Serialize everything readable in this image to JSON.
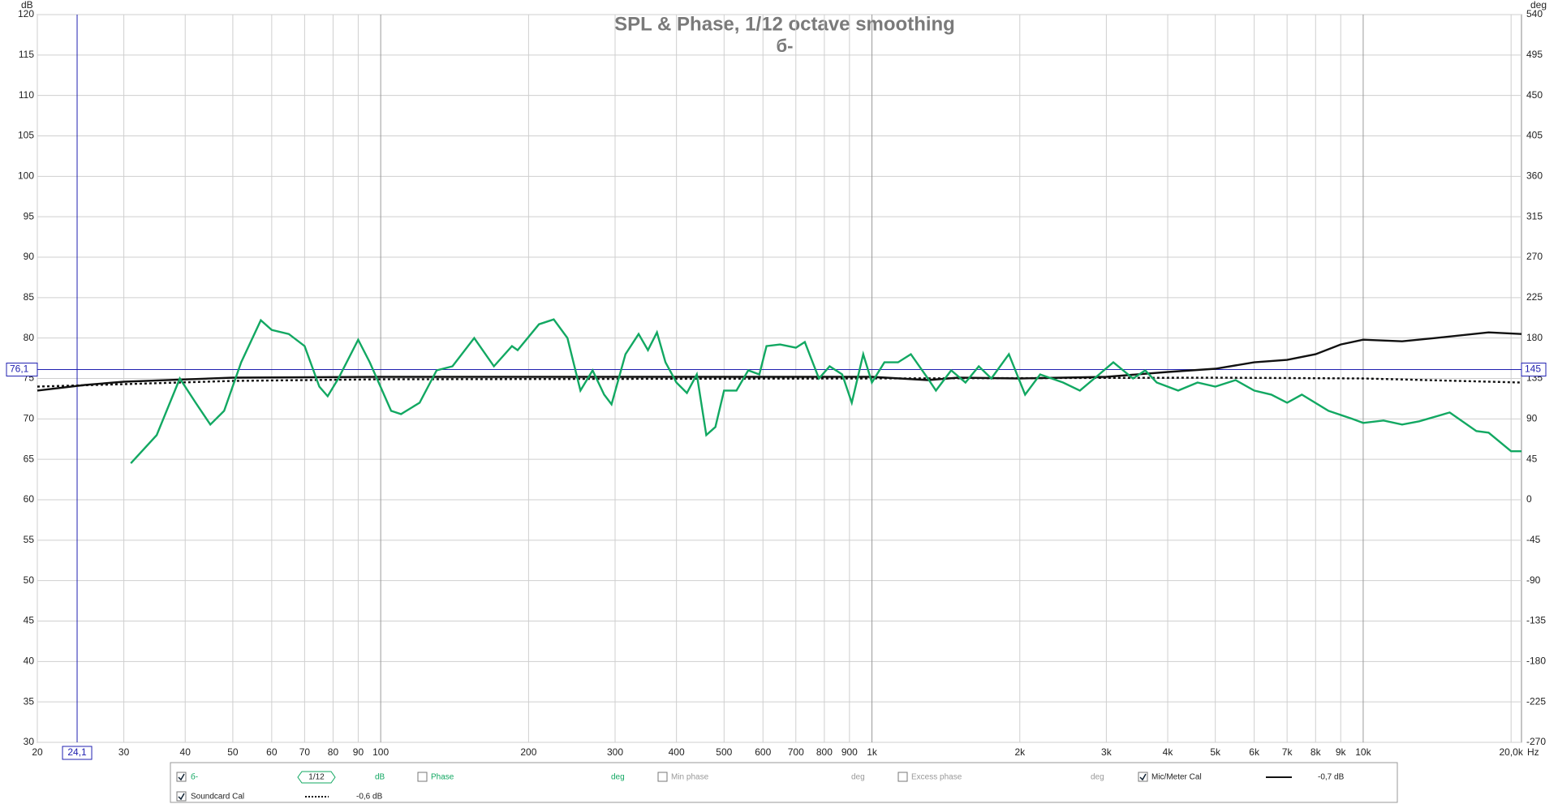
{
  "chart_data": {
    "type": "line",
    "title": "SPL & Phase, 1/12 octave smoothing",
    "subtitle": "б-",
    "y_label": "dB",
    "y2_label": "deg",
    "x_label": "Hz",
    "log_x": true,
    "grid": true,
    "xlim": [
      20,
      21000
    ],
    "xticks": [
      20,
      30,
      40,
      50,
      60,
      70,
      80,
      90,
      100,
      200,
      300,
      400,
      500,
      600,
      700,
      800,
      900,
      {
        "value": 1000,
        "label": "1k"
      },
      {
        "value": 2000,
        "label": "2k"
      },
      {
        "value": 3000,
        "label": "3k"
      },
      {
        "value": 4000,
        "label": "4k"
      },
      {
        "value": 5000,
        "label": "5k"
      },
      {
        "value": 6000,
        "label": "6k"
      },
      {
        "value": 7000,
        "label": "7k"
      },
      {
        "value": 8000,
        "label": "8k"
      },
      {
        "value": 9000,
        "label": "9k"
      },
      {
        "value": 10000,
        "label": "10k"
      },
      {
        "value": 20000,
        "label": "20,0k"
      }
    ],
    "ylim": [
      30,
      120
    ],
    "yticks": [
      30,
      35,
      40,
      45,
      50,
      55,
      60,
      65,
      70,
      75,
      80,
      85,
      90,
      95,
      100,
      105,
      110,
      115,
      120
    ],
    "y2lim": [
      -270,
      540
    ],
    "y2ticks": [
      -270,
      -225,
      -180,
      -135,
      -90,
      -45,
      0,
      45,
      90,
      135,
      180,
      225,
      270,
      315,
      360,
      405,
      450,
      495,
      540
    ],
    "cursor": {
      "x": {
        "value": 24.1,
        "label": "24,1"
      },
      "y": {
        "value": 76.1,
        "label": "76,1"
      },
      "y2": 145
    },
    "series": [
      {
        "name": "б-",
        "color": "#12a862",
        "checked": true,
        "smoothing": "1/12",
        "unit": "dB",
        "dash": false,
        "x": [
          31,
          35,
          39,
          42,
          45,
          48,
          52,
          57,
          60,
          65,
          70,
          75,
          78,
          82,
          90,
          95,
          105,
          110,
          120,
          130,
          140,
          155,
          170,
          185,
          190,
          210,
          225,
          240,
          255,
          270,
          285,
          295,
          315,
          335,
          350,
          365,
          380,
          400,
          420,
          440,
          460,
          480,
          500,
          530,
          560,
          590,
          610,
          650,
          700,
          730,
          780,
          820,
          870,
          910,
          960,
          1000,
          1060,
          1130,
          1200,
          1300,
          1350,
          1450,
          1550,
          1650,
          1750,
          1900,
          2050,
          2200,
          2450,
          2650,
          2900,
          3100,
          3400,
          3600,
          3800,
          4200,
          4600,
          5000,
          5500,
          6000,
          6500,
          7000,
          7500,
          8500,
          9500,
          10000,
          11000,
          12000,
          13000,
          15000,
          17000,
          18000,
          20000,
          21000
        ],
        "values": [
          64.5,
          68,
          75,
          72,
          69.3,
          71,
          77,
          82.2,
          81,
          80.5,
          79,
          74,
          72.8,
          75,
          79.8,
          77,
          71,
          70.6,
          72,
          76,
          76.5,
          80,
          76.5,
          79,
          78.5,
          81.7,
          82.3,
          80,
          73.5,
          76,
          73,
          71.8,
          78,
          80.5,
          78.5,
          80.7,
          77,
          74.5,
          73.2,
          75.5,
          68,
          69,
          73.5,
          73.5,
          76,
          75.5,
          79,
          79.2,
          78.8,
          79.5,
          75,
          76.5,
          75.5,
          72,
          78,
          74.5,
          77,
          77,
          78,
          75,
          73.5,
          76,
          74.5,
          76.5,
          75,
          78,
          73,
          75.5,
          74.5,
          73.5,
          75.5,
          77,
          75,
          76,
          74.5,
          73.5,
          74.5,
          74,
          74.8,
          73.5,
          73,
          72,
          73,
          71,
          70,
          69.5,
          69.8,
          69.3,
          69.7,
          70.8,
          68.5,
          68.3,
          66,
          66
        ]
      },
      {
        "name": "Mic/Meter Cal",
        "color": "#111111",
        "checked": true,
        "offset_label": "-0,7 dB",
        "dash": false,
        "x": [
          20,
          25,
          30,
          50,
          100,
          1000,
          1300,
          1500,
          2000,
          3000,
          4000,
          5000,
          6000,
          7000,
          8000,
          9000,
          10000,
          12000,
          14000,
          18000,
          21000
        ],
        "values": [
          73.5,
          74.2,
          74.6,
          75.1,
          75.2,
          75.2,
          74.8,
          75.1,
          75,
          75.2,
          75.8,
          76.2,
          77,
          77.3,
          78,
          79.2,
          79.8,
          79.6,
          80,
          80.7,
          80.5
        ]
      },
      {
        "name": "Soundcard Cal",
        "color": "#111111",
        "checked": true,
        "offset_label": "-0,6 dB",
        "dash": true,
        "x": [
          20,
          30,
          50,
          100,
          1000,
          5000,
          10000,
          21000
        ],
        "values": [
          74,
          74.3,
          74.7,
          74.9,
          75,
          75.1,
          75,
          74.5
        ]
      }
    ],
    "phase_items": [
      {
        "name": "Phase",
        "unit": "deg",
        "checked": false,
        "color": "#12a862"
      },
      {
        "name": "Min phase",
        "unit": "deg",
        "checked": false,
        "color": "#999999"
      },
      {
        "name": "Excess phase",
        "unit": "deg",
        "checked": false,
        "color": "#999999"
      }
    ]
  }
}
